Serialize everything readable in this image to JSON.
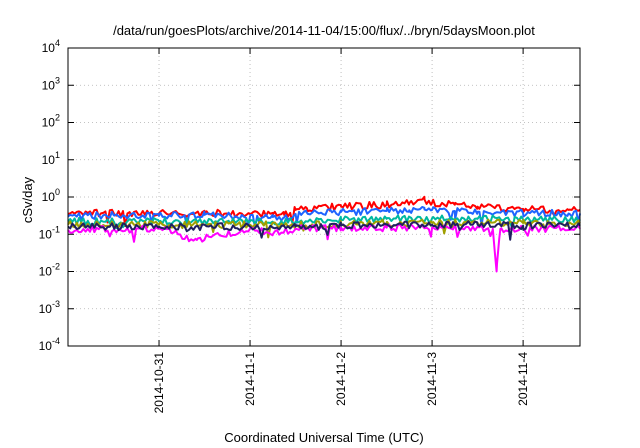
{
  "chart_data": {
    "type": "line",
    "title": "/data/run/goesPlots/archive/2014-11-04/15:00/flux/../bryn/5daysMoon.plot",
    "xlabel": "Coordinated Universal Time (UTC)",
    "ylabel": "cSv/day",
    "yscale": "log",
    "ylim": [
      0.0001,
      10000
    ],
    "y_ticks": [
      {
        "base": "10",
        "exp": "4"
      },
      {
        "base": "10",
        "exp": "3"
      },
      {
        "base": "10",
        "exp": "2"
      },
      {
        "base": "10",
        "exp": "1"
      },
      {
        "base": "10",
        "exp": "0"
      },
      {
        "base": "10",
        "exp": "-1"
      },
      {
        "base": "10",
        "exp": "-2"
      },
      {
        "base": "10",
        "exp": "-3"
      },
      {
        "base": "10",
        "exp": "-4"
      }
    ],
    "xlim": [
      "2014-10-30T00:00",
      "2014-11-04T15:00"
    ],
    "x_ticks": [
      "2014-10-31",
      "2014-11-1",
      "2014-11-2",
      "2014-11-3",
      "2014-11-4"
    ],
    "grid": true,
    "series": [
      {
        "color": "#ff0000",
        "x": [
          "2014-10-30T00:00",
          "2014-10-30T12:00",
          "2014-10-31T00:00",
          "2014-10-31T12:00",
          "2014-11-01T00:00",
          "2014-11-01T06:00",
          "2014-11-01T09:00",
          "2014-11-01T12:00",
          "2014-11-01T15:00",
          "2014-11-02T00:00",
          "2014-11-02T12:00",
          "2014-11-02T18:00",
          "2014-11-02T22:00",
          "2014-11-03T00:00",
          "2014-11-03T06:00",
          "2014-11-03T12:00",
          "2014-11-03T18:00",
          "2014-11-04T00:00",
          "2014-11-04T12:00",
          "2014-11-04T15:00"
        ],
        "y": [
          0.35,
          0.38,
          0.36,
          0.38,
          0.35,
          0.34,
          0.33,
          0.45,
          0.5,
          0.55,
          0.62,
          0.68,
          0.85,
          0.7,
          0.62,
          0.55,
          0.5,
          0.48,
          0.45,
          0.45
        ]
      },
      {
        "color": "#1e64ff",
        "x": [
          "2014-10-30T00:00",
          "2014-10-30T12:00",
          "2014-10-31T00:00",
          "2014-10-31T12:00",
          "2014-11-01T00:00",
          "2014-11-01T06:00",
          "2014-11-01T09:00",
          "2014-11-01T12:00",
          "2014-11-01T15:00",
          "2014-11-02T00:00",
          "2014-11-02T12:00",
          "2014-11-02T18:00",
          "2014-11-02T22:00",
          "2014-11-03T00:00",
          "2014-11-03T06:00",
          "2014-11-03T12:00",
          "2014-11-03T18:00",
          "2014-11-04T00:00",
          "2014-11-04T12:00",
          "2014-11-04T15:00"
        ],
        "y": [
          0.3,
          0.33,
          0.31,
          0.33,
          0.3,
          0.29,
          0.28,
          0.35,
          0.38,
          0.4,
          0.42,
          0.44,
          0.46,
          0.45,
          0.42,
          0.4,
          0.38,
          0.37,
          0.36,
          0.36
        ]
      },
      {
        "color": "#00b8a0",
        "x": [
          "2014-10-30T00:00",
          "2014-10-31T00:00",
          "2014-11-01T00:00",
          "2014-11-01T12:00",
          "2014-11-02T00:00",
          "2014-11-02T12:00",
          "2014-11-03T00:00",
          "2014-11-03T12:00",
          "2014-11-04T00:00",
          "2014-11-04T15:00"
        ],
        "y": [
          0.22,
          0.22,
          0.22,
          0.22,
          0.24,
          0.26,
          0.27,
          0.26,
          0.25,
          0.25
        ]
      },
      {
        "color": "#a0a000",
        "x": [
          "2014-10-30T00:00",
          "2014-10-31T00:00",
          "2014-11-01T00:00",
          "2014-11-01T12:00",
          "2014-11-02T00:00",
          "2014-11-02T12:00",
          "2014-11-03T00:00",
          "2014-11-03T12:00",
          "2014-11-04T00:00",
          "2014-11-04T15:00"
        ],
        "y": [
          0.18,
          0.18,
          0.18,
          0.18,
          0.19,
          0.2,
          0.2,
          0.2,
          0.2,
          0.2
        ]
      },
      {
        "color": "#ff00ff",
        "x": [
          "2014-10-30T00:00",
          "2014-10-31T00:00",
          "2014-10-31T10:00",
          "2014-11-01T00:00",
          "2014-11-01T06:00",
          "2014-11-01T12:00",
          "2014-11-02T00:00",
          "2014-11-02T12:00",
          "2014-11-03T00:00",
          "2014-11-03T16:00",
          "2014-11-03T17:00",
          "2014-11-03T18:00",
          "2014-11-04T00:00",
          "2014-11-04T15:00"
        ],
        "y": [
          0.13,
          0.14,
          0.07,
          0.14,
          0.1,
          0.14,
          0.15,
          0.15,
          0.15,
          0.14,
          0.01,
          0.14,
          0.14,
          0.14
        ]
      },
      {
        "color": "#202060",
        "x": [
          "2014-10-30T00:00",
          "2014-10-31T00:00",
          "2014-11-01T00:00",
          "2014-11-01T12:00",
          "2014-11-02T00:00",
          "2014-11-02T12:00",
          "2014-11-03T00:00",
          "2014-11-03T12:00",
          "2014-11-04T00:00",
          "2014-11-04T15:00"
        ],
        "y": [
          0.16,
          0.16,
          0.16,
          0.16,
          0.17,
          0.18,
          0.18,
          0.18,
          0.17,
          0.17
        ]
      }
    ]
  }
}
